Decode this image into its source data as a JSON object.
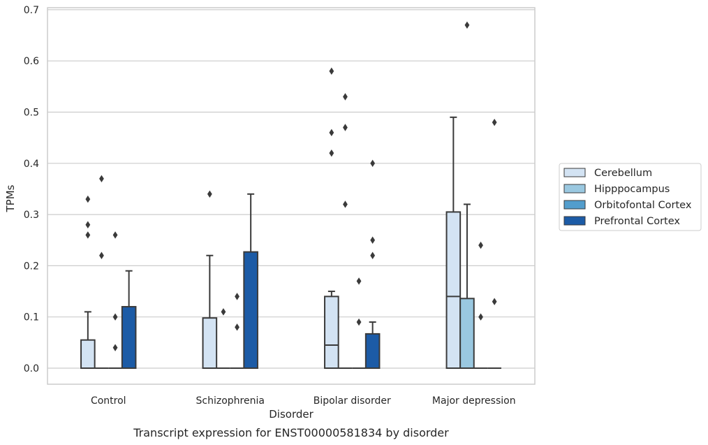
{
  "chart_data": {
    "type": "box",
    "caption": "Transcript expression for ENST00000581834 by disorder",
    "xlabel": "Disorder",
    "ylabel": "TPMs",
    "ylim": [
      -0.032,
      0.705
    ],
    "yticks": [
      0.0,
      0.1,
      0.2,
      0.3,
      0.4,
      0.5,
      0.6,
      0.7
    ],
    "ytick_labels": [
      "0.0",
      "0.1",
      "0.2",
      "0.3",
      "0.4",
      "0.5",
      "0.6",
      "0.7"
    ],
    "grid": "horizontal",
    "legend_position": "right",
    "categories": [
      "Control",
      "Schizophrenia",
      "Bipolar disorder",
      "Major depression"
    ],
    "series": [
      {
        "name": "Cerebellum",
        "color": "#d3e3f3",
        "boxes": [
          {
            "q1": 0,
            "median": 0,
            "q3": 0.055,
            "whisker_low": 0,
            "whisker_high": 0.11,
            "outliers": [
              0.33,
              0.28,
              0.26
            ]
          },
          {
            "q1": 0,
            "median": 0,
            "q3": 0.098,
            "whisker_low": 0,
            "whisker_high": 0.22,
            "outliers": [
              0.34
            ]
          },
          {
            "q1": 0,
            "median": 0.045,
            "q3": 0.14,
            "whisker_low": 0,
            "whisker_high": 0.15,
            "outliers": [
              0.58,
              0.46,
              0.42
            ]
          },
          {
            "q1": 0,
            "median": 0.14,
            "q3": 0.305,
            "whisker_low": 0,
            "whisker_high": 0.49,
            "outliers": []
          }
        ]
      },
      {
        "name": "Hipppocampus",
        "color": "#9ac8e0",
        "boxes": [
          {
            "q1": 0,
            "median": 0,
            "q3": 0,
            "whisker_low": 0,
            "whisker_high": 0,
            "outliers": [
              0.37,
              0.22
            ]
          },
          {
            "q1": 0,
            "median": 0,
            "q3": 0,
            "whisker_low": 0,
            "whisker_high": 0,
            "outliers": [
              0.11
            ]
          },
          {
            "q1": 0,
            "median": 0,
            "q3": 0,
            "whisker_low": 0,
            "whisker_high": 0,
            "outliers": [
              0.53,
              0.47,
              0.32
            ]
          },
          {
            "q1": 0,
            "median": 0,
            "q3": 0.136,
            "whisker_low": 0,
            "whisker_high": 0.32,
            "outliers": [
              0.67
            ]
          }
        ]
      },
      {
        "name": "Orbitofontal Cortex",
        "color": "#529dcc",
        "boxes": [
          {
            "q1": 0,
            "median": 0,
            "q3": 0,
            "whisker_low": 0,
            "whisker_high": 0,
            "outliers": [
              0.26,
              0.1,
              0.04
            ]
          },
          {
            "q1": 0,
            "median": 0,
            "q3": 0,
            "whisker_low": 0,
            "whisker_high": 0,
            "outliers": [
              0.14,
              0.08
            ]
          },
          {
            "q1": 0,
            "median": 0,
            "q3": 0,
            "whisker_low": 0,
            "whisker_high": 0,
            "outliers": [
              0.17,
              0.09
            ]
          },
          {
            "q1": 0,
            "median": 0,
            "q3": 0,
            "whisker_low": 0,
            "whisker_high": 0,
            "outliers": [
              0.24,
              0.1
            ]
          }
        ]
      },
      {
        "name": "Prefrontal Cortex",
        "color": "#1c5ba6",
        "boxes": [
          {
            "q1": 0,
            "median": 0,
            "q3": 0.12,
            "whisker_low": 0,
            "whisker_high": 0.19,
            "outliers": []
          },
          {
            "q1": 0,
            "median": 0,
            "q3": 0.227,
            "whisker_low": 0,
            "whisker_high": 0.34,
            "outliers": []
          },
          {
            "q1": 0,
            "median": 0,
            "q3": 0.067,
            "whisker_low": 0,
            "whisker_high": 0.09,
            "outliers": [
              0.4,
              0.25,
              0.22
            ]
          },
          {
            "q1": 0,
            "median": 0,
            "q3": 0,
            "whisker_low": 0,
            "whisker_high": 0,
            "outliers": [
              0.48,
              0.13
            ]
          }
        ]
      }
    ]
  }
}
